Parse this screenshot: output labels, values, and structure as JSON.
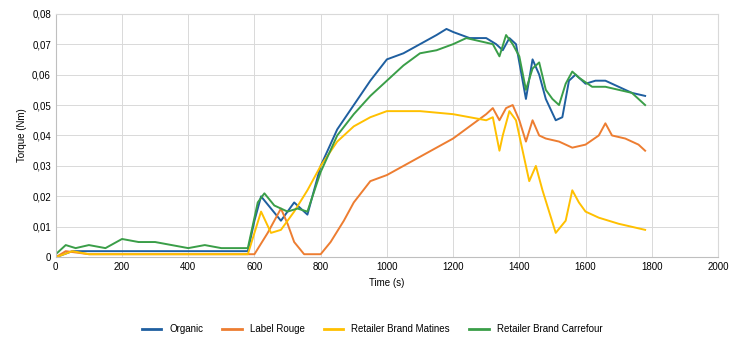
{
  "chart_data": {
    "type": "line",
    "x_label": "Time (s)",
    "y_label": "Torque (Nm)",
    "xlim": [
      0,
      2000
    ],
    "xticks": [
      0,
      200,
      400,
      600,
      800,
      1000,
      1200,
      1400,
      1600,
      1800,
      2000
    ],
    "ylim": [
      0,
      0.08
    ],
    "yticks": [
      0,
      {
        "value": 0.01,
        "label": "0,01"
      },
      {
        "value": 0.02,
        "label": "0,02"
      },
      {
        "value": 0.03,
        "label": "0,03"
      },
      {
        "value": 0.04,
        "label": "0,04"
      },
      {
        "value": 0.05,
        "label": "0,05"
      },
      {
        "value": 0.06,
        "label": "0,06"
      },
      {
        "value": 0.07,
        "label": "0,07"
      },
      {
        "value": 0.08,
        "label": "0,08"
      }
    ],
    "grid": true,
    "legend": "bottom",
    "series": [
      {
        "name": "Organic",
        "color": "#1f5fa0",
        "x": [
          0,
          50,
          100,
          200,
          300,
          400,
          500,
          580,
          600,
          620,
          680,
          720,
          760,
          800,
          850,
          900,
          950,
          1000,
          1050,
          1100,
          1150,
          1180,
          1200,
          1250,
          1300,
          1330,
          1350,
          1370,
          1390,
          1420,
          1440,
          1460,
          1480,
          1510,
          1530,
          1550,
          1570,
          1600,
          1630,
          1660,
          1700,
          1740,
          1780
        ],
        "values": [
          0,
          0.002,
          0.002,
          0.002,
          0.002,
          0.002,
          0.002,
          0.002,
          0.012,
          0.02,
          0.012,
          0.018,
          0.014,
          0.03,
          0.042,
          0.05,
          0.058,
          0.065,
          0.067,
          0.07,
          0.073,
          0.075,
          0.074,
          0.072,
          0.072,
          0.07,
          0.068,
          0.072,
          0.07,
          0.052,
          0.065,
          0.06,
          0.052,
          0.045,
          0.046,
          0.058,
          0.06,
          0.057,
          0.058,
          0.058,
          0.056,
          0.054,
          0.053
        ]
      },
      {
        "name": "Label Rouge",
        "color": "#ed7d31",
        "x": [
          0,
          30,
          100,
          200,
          300,
          400,
          500,
          600,
          640,
          680,
          700,
          720,
          750,
          800,
          830,
          870,
          900,
          950,
          1000,
          1050,
          1100,
          1150,
          1200,
          1250,
          1300,
          1320,
          1340,
          1360,
          1380,
          1400,
          1420,
          1440,
          1460,
          1480,
          1520,
          1560,
          1600,
          1640,
          1660,
          1680,
          1720,
          1760,
          1780
        ],
        "values": [
          0,
          0.002,
          0.001,
          0.001,
          0.001,
          0.001,
          0.001,
          0.001,
          0.008,
          0.016,
          0.011,
          0.005,
          0.001,
          0.001,
          0.005,
          0.012,
          0.018,
          0.025,
          0.027,
          0.03,
          0.033,
          0.036,
          0.039,
          0.043,
          0.047,
          0.049,
          0.045,
          0.049,
          0.05,
          0.045,
          0.038,
          0.045,
          0.04,
          0.039,
          0.038,
          0.036,
          0.037,
          0.04,
          0.044,
          0.04,
          0.039,
          0.037,
          0.035
        ]
      },
      {
        "name": "Retailer Brand Matines",
        "color": "#ffc000",
        "x": [
          0,
          50,
          100,
          200,
          300,
          400,
          500,
          580,
          620,
          650,
          680,
          700,
          720,
          760,
          800,
          850,
          900,
          950,
          1000,
          1100,
          1200,
          1250,
          1300,
          1320,
          1340,
          1350,
          1370,
          1390,
          1410,
          1430,
          1450,
          1470,
          1490,
          1510,
          1540,
          1560,
          1580,
          1600,
          1640,
          1700,
          1740,
          1780
        ],
        "values": [
          0,
          0.002,
          0.001,
          0.001,
          0.001,
          0.001,
          0.001,
          0.001,
          0.015,
          0.008,
          0.009,
          0.012,
          0.015,
          0.022,
          0.03,
          0.038,
          0.043,
          0.046,
          0.048,
          0.048,
          0.047,
          0.046,
          0.045,
          0.046,
          0.035,
          0.04,
          0.048,
          0.045,
          0.035,
          0.025,
          0.03,
          0.022,
          0.015,
          0.008,
          0.012,
          0.022,
          0.018,
          0.015,
          0.013,
          0.011,
          0.01,
          0.009
        ]
      },
      {
        "name": "Retailer Brand Carrefour",
        "color": "#3a9e48",
        "x": [
          0,
          30,
          60,
          100,
          150,
          200,
          250,
          300,
          350,
          400,
          450,
          500,
          580,
          610,
          630,
          660,
          700,
          730,
          760,
          800,
          850,
          900,
          950,
          1000,
          1050,
          1100,
          1150,
          1200,
          1240,
          1280,
          1320,
          1340,
          1360,
          1380,
          1400,
          1420,
          1440,
          1460,
          1480,
          1500,
          1520,
          1540,
          1560,
          1580,
          1620,
          1660,
          1700,
          1740,
          1780
        ],
        "values": [
          0.001,
          0.004,
          0.003,
          0.004,
          0.003,
          0.006,
          0.005,
          0.005,
          0.004,
          0.003,
          0.004,
          0.003,
          0.003,
          0.018,
          0.021,
          0.017,
          0.015,
          0.016,
          0.015,
          0.028,
          0.04,
          0.047,
          0.053,
          0.058,
          0.063,
          0.067,
          0.068,
          0.07,
          0.072,
          0.071,
          0.07,
          0.066,
          0.073,
          0.07,
          0.066,
          0.055,
          0.062,
          0.064,
          0.055,
          0.052,
          0.05,
          0.057,
          0.061,
          0.059,
          0.056,
          0.056,
          0.055,
          0.054,
          0.05
        ]
      }
    ]
  }
}
